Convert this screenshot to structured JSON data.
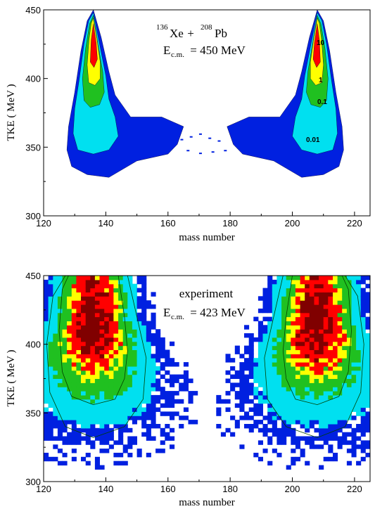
{
  "chart_data": [
    {
      "type": "heatmap",
      "panel": "top",
      "xlabel": "mass  number",
      "ylabel": "TKE ( MeV )",
      "xlim": [
        120,
        225
      ],
      "ylim": [
        300,
        450
      ],
      "xticks": [
        "120",
        "140",
        "160",
        "180",
        "200",
        "220"
      ],
      "xtick_values": [
        120,
        140,
        160,
        180,
        200,
        220
      ],
      "yticks": [
        "300",
        "350",
        "400",
        "450"
      ],
      "ytick_values": [
        300,
        350,
        400,
        450
      ],
      "annotation": {
        "a1": "136",
        "e1": "Xe",
        "plus": " + ",
        "a2": "208",
        "e2": "Pb",
        "energy_prefix": "E",
        "energy_sub": "c.m.",
        "energy_value": " = 450 MeV"
      },
      "contour_levels": [
        "10",
        "1",
        "0.1",
        "0.01"
      ],
      "colors": {
        "lowest": "#0020e0",
        "low": "#00e0f0",
        "mid": "#20c020",
        "high": "#ffff00",
        "highest": "#ff0000",
        "peak": "#800000"
      },
      "peaks": [
        {
          "mass": 136,
          "tke": 430
        },
        {
          "mass": 208,
          "tke": 430
        }
      ]
    },
    {
      "type": "heatmap",
      "panel": "bottom",
      "xlabel": "mass  number",
      "ylabel": "TKE ( MeV )",
      "xlim": [
        120,
        225
      ],
      "ylim": [
        300,
        450
      ],
      "xticks": [
        "120",
        "140",
        "160",
        "180",
        "200",
        "220"
      ],
      "xtick_values": [
        120,
        140,
        160,
        180,
        200,
        220
      ],
      "yticks": [
        "300",
        "350",
        "400",
        "450"
      ],
      "ytick_values": [
        300,
        350,
        400,
        450
      ],
      "annotation": {
        "line1": "experiment",
        "energy_prefix": "E",
        "energy_sub": "c.m.",
        "energy_value": " = 423 MeV"
      },
      "colors": {
        "lowest": "#0020e0",
        "low": "#00e0f0",
        "mid": "#20c020",
        "high": "#ffff00",
        "highest": "#ff0000",
        "peak": "#800000"
      },
      "peaks": [
        {
          "mass": 136,
          "tke": 420
        },
        {
          "mass": 208,
          "tke": 420
        }
      ]
    }
  ]
}
